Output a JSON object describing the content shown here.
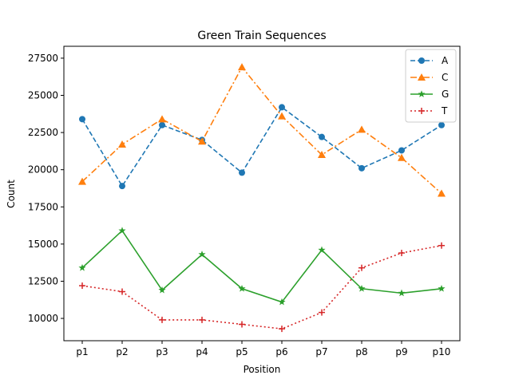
{
  "chart_data": {
    "type": "line",
    "title": "Green Train Sequences",
    "xlabel": "Position",
    "ylabel": "Count",
    "categories": [
      "p1",
      "p2",
      "p3",
      "p4",
      "p5",
      "p6",
      "p7",
      "p8",
      "p9",
      "p10"
    ],
    "yticks": [
      10000,
      12500,
      15000,
      17500,
      20000,
      22500,
      25000,
      27500
    ],
    "ylim": [
      8500,
      28300
    ],
    "grid": false,
    "legend_position": "top-right",
    "series": [
      {
        "name": "A",
        "color": "#1f77b4",
        "linestyle": "dashed",
        "marker": "circle",
        "values": [
          23400,
          18900,
          23000,
          22000,
          19800,
          24200,
          22200,
          20100,
          21300,
          23000
        ]
      },
      {
        "name": "C",
        "color": "#ff7f0e",
        "linestyle": "dashdot",
        "marker": "triangle",
        "values": [
          19200,
          21700,
          23400,
          21900,
          26900,
          23600,
          21000,
          22700,
          20800,
          18400
        ]
      },
      {
        "name": "G",
        "color": "#2ca02c",
        "linestyle": "solid",
        "marker": "star",
        "values": [
          13400,
          15900,
          11900,
          14300,
          12000,
          11100,
          14600,
          12000,
          11700,
          12000
        ]
      },
      {
        "name": "T",
        "color": "#d62728",
        "linestyle": "dotted",
        "marker": "plus",
        "values": [
          12200,
          11800,
          9900,
          9900,
          9600,
          9300,
          10400,
          13400,
          14400,
          14900
        ]
      }
    ]
  }
}
